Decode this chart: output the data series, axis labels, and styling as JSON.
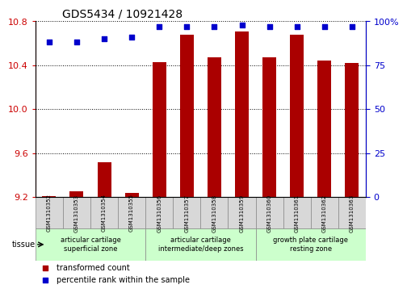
{
  "title": "GDS5434 / 10921428",
  "samples": [
    "GSM1310352",
    "GSM1310353",
    "GSM1310354",
    "GSM1310355",
    "GSM1310356",
    "GSM1310357",
    "GSM1310358",
    "GSM1310359",
    "GSM1310360",
    "GSM1310361",
    "GSM1310362",
    "GSM1310363"
  ],
  "bar_values": [
    9.21,
    9.25,
    9.52,
    9.24,
    10.43,
    10.68,
    10.47,
    10.71,
    10.47,
    10.68,
    10.44,
    10.42
  ],
  "percentile_values": [
    88,
    88,
    90,
    91,
    97,
    97,
    97,
    98,
    97,
    97,
    97,
    97
  ],
  "bar_color": "#aa0000",
  "percentile_color": "#0000cc",
  "ymin": 9.2,
  "ymax": 10.8,
  "yticks_left": [
    9.2,
    9.6,
    10.0,
    10.4,
    10.8
  ],
  "yticks_right": [
    0,
    25,
    50,
    75,
    100
  ],
  "ylabel_left_color": "#cc0000",
  "ylabel_right_color": "#0000cc",
  "tissue_groups": [
    {
      "label": "articular cartilage\nsuperficial zone",
      "start": 0,
      "end": 4,
      "color": "#ccffcc"
    },
    {
      "label": "articular cartilage\nintermediate/deep zones",
      "start": 4,
      "end": 8,
      "color": "#ccffcc"
    },
    {
      "label": "growth plate cartilage\nresting zone",
      "start": 8,
      "end": 12,
      "color": "#ccffcc"
    }
  ],
  "tissue_label": "tissue",
  "legend_bar_label": "transformed count",
  "legend_pct_label": "percentile rank within the sample",
  "grid_color": "#000000",
  "bar_base": 9.2,
  "bg_color": "#ffffff",
  "plot_bg_color": "#ffffff"
}
